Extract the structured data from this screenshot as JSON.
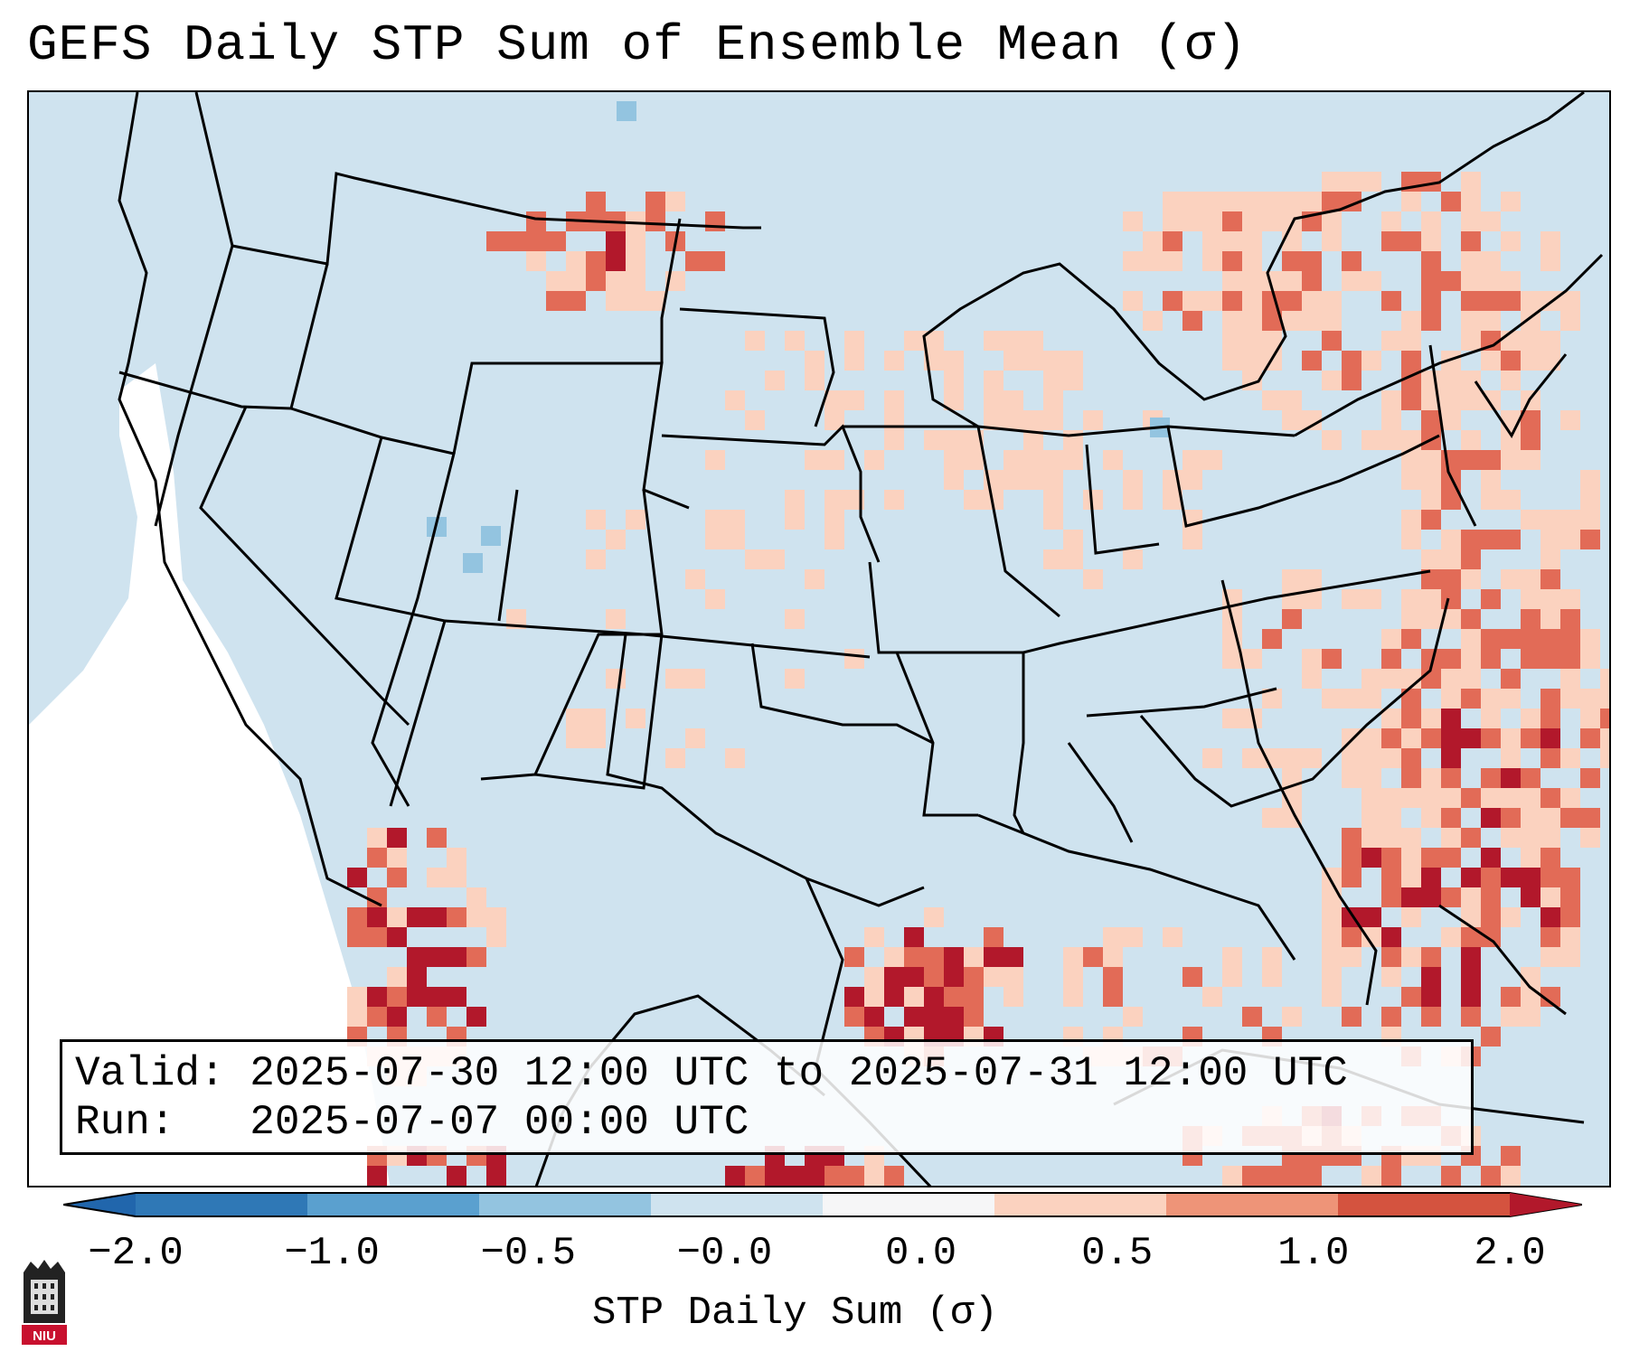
{
  "title": "GEFS Daily STP Sum of Ensemble Mean (σ)",
  "info": {
    "valid": "Valid: 2025-07-30 12:00 UTC to 2025-07-31 12:00 UTC",
    "run": "Run:   2025-07-07 00:00 UTC"
  },
  "colorbar": {
    "label": "STP Daily Sum (σ)",
    "ticks": [
      "−2.0",
      "−1.0",
      "−0.5",
      "−0.0",
      "0.0",
      "0.5",
      "1.0",
      "2.0"
    ],
    "colors": [
      "#2f78b6",
      "#5aa0cf",
      "#93c4e0",
      "#cfe3ef",
      "#f6f6f7",
      "#fbd2bf",
      "#ee9478",
      "#d4533f"
    ],
    "extend_low_color": "#2166ac",
    "extend_high_color": "#b2182b"
  },
  "map": {
    "background_color": "#cfe3ef",
    "missing_color": "#ffffff",
    "high_color": "#b2182b",
    "medium_color": "#e26b57",
    "low_color": "#fbd2bf",
    "negative_color": "#93c4e0"
  },
  "logo": {
    "text": "NIU"
  }
}
